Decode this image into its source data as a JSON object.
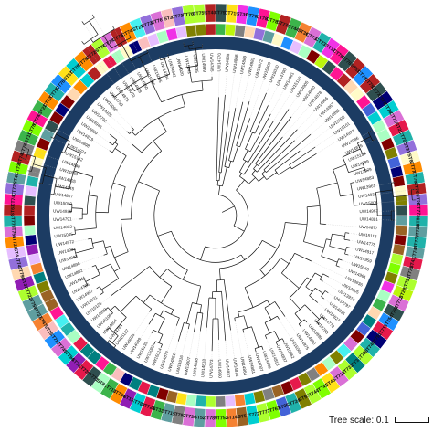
{
  "scale_bar": {
    "label": "Tree scale: 0.1"
  },
  "tips": [
    "CT793",
    "CT719",
    "ST39",
    "CT776",
    "CT784",
    "CT785",
    "CT736",
    "ST44",
    "ST36",
    "CT734",
    "CT735",
    "ST17",
    "CT762",
    "CT760",
    "ST51",
    "CT743",
    "CT758",
    "CT771",
    "CT780",
    "CT761",
    "CT756",
    "ST21",
    "CT757",
    "ST31",
    "ST6",
    "CT775",
    "CT768",
    "CT769",
    "ST20",
    "CT773",
    "ST50",
    "CT726",
    "CT779",
    "CT748",
    "ST43",
    "CT770",
    "CT733",
    "ST29",
    "CT712",
    "CT782",
    "CT754",
    "CT717",
    "CT791",
    "CT746",
    "CT788",
    "ST3",
    "CT733",
    "CT712",
    "ST45",
    "CT741",
    "CT744",
    "ST9",
    "CT724",
    "ST35",
    "CT763",
    "CT777",
    "CT772",
    "ST5",
    "ST14",
    "CT752",
    "CT789",
    "ST52",
    "CT734",
    "CT792",
    "CT715",
    "ST33",
    "CT728",
    "CT783",
    "ST15",
    "CT764",
    "CT718",
    "ST8",
    "CT771",
    "CT739",
    "ST26",
    "CT794",
    "CT745",
    "CT787",
    "ST19",
    "ST47",
    "CT737",
    "CT759",
    "CT722",
    "ST37",
    "CT790",
    "CT749",
    "ST4",
    "CT720",
    "CT756",
    "CT779",
    "ST62",
    "CT740",
    "CT727",
    "ST41",
    "CT730",
    "CT747",
    "CT781",
    "ST11",
    "CT785",
    "CT740",
    "ST22",
    "CT731",
    "CT713",
    "CT765",
    "ST67",
    "CT750",
    "CT786",
    "CT725",
    "ST70",
    "CT778",
    "CT714",
    "CT742",
    "ST27",
    "CT738",
    "CT767",
    "ST2",
    "CT716",
    "CT766",
    "CT755",
    "ST40"
  ],
  "leaf_labels": [
    "UW14770",
    "UW14865",
    "UW14868",
    "UW14869",
    "UW14881",
    "UW14872",
    "UW15009",
    "UW15030",
    "UW14790",
    "UW14981",
    "UW15130",
    "UW14905",
    "UW14880",
    "UW14878",
    "UW14966",
    "UW14967",
    "UW14955",
    "UW15002",
    "UW15101",
    "UW14973",
    "UW14986",
    "UW14876",
    "UW15123",
    "UW14809",
    "UW13979",
    "UW14883",
    "UW13961",
    "UW14931",
    "UW15006",
    "UW14967",
    "UW14881",
    "UW14877",
    "UW15116",
    "UW14778",
    "UW14917",
    "UW14959",
    "UW15048",
    "UW14961",
    "UW13936",
    "UW14905",
    "UW13974",
    "UW14797",
    "UW14835",
    "UW14827",
    "UW14779",
    "UW14788",
    "UW13999",
    "UW14980",
    "UW14975",
    "UW15040",
    "UW15062",
    "UW14837",
    "UW14813",
    "UW14836",
    "UW15007",
    "UW14881",
    "UW14864",
    "UW14874",
    "UW14837",
    "UW14960",
    "UW14773",
    "UW14818",
    "UW14838",
    "UW13907",
    "UW14916",
    "UW14851",
    "UW14879",
    "UW15014",
    "UW15082",
    "UW15139",
    "UW14999",
    "UW15035",
    "UW15127",
    "UW14784",
    "UW14804",
    "UW15105",
    "UW14990",
    "UW15126",
    "UW14931",
    "UW14997",
    "UW14786",
    "UW14911",
    "UW14802",
    "UW14890",
    "UW14893",
    "UW14904",
    "UW14972",
    "UW15045",
    "UW14832",
    "UW14791",
    "UW14935",
    "UW15003",
    "UW14807",
    "UW14945",
    "UW14905",
    "UW14833",
    "UW14840",
    "UW15142",
    "UW14924",
    "UW14898",
    "UW14819",
    "UW14899",
    "UW14946",
    "UW14792",
    "UW14926",
    "UW15060",
    "UW14793",
    "UW14875",
    "UW15070",
    "UW14828",
    "UW14850",
    "UW15065",
    "UW15005",
    "UW14794",
    "UW14941",
    "UW14920",
    "UW15041",
    "UW14935",
    "UW14999",
    "UW14785"
  ],
  "colors": {
    "inner_ring_band": "#1c3c63",
    "branch": "#111111",
    "leader": "#bdbdbd",
    "palette": [
      "#e6194b",
      "#3cb44b",
      "#ffe119",
      "#4363d8",
      "#f58231",
      "#911eb4",
      "#46f0f0",
      "#f032e6",
      "#bcf60c",
      "#fabebe",
      "#008080",
      "#e6beff",
      "#9a6324",
      "#fffac8",
      "#800000",
      "#aaffc3",
      "#808000",
      "#ffd8b1",
      "#000075",
      "#808080",
      "#2f4f4f",
      "#00ced1",
      "#ff1493",
      "#7fff00",
      "#ff8c00",
      "#1e90ff",
      "#adff2f",
      "#da70d6",
      "#20b2aa",
      "#b22222",
      "#5f9ea0",
      "#9370db"
    ]
  }
}
